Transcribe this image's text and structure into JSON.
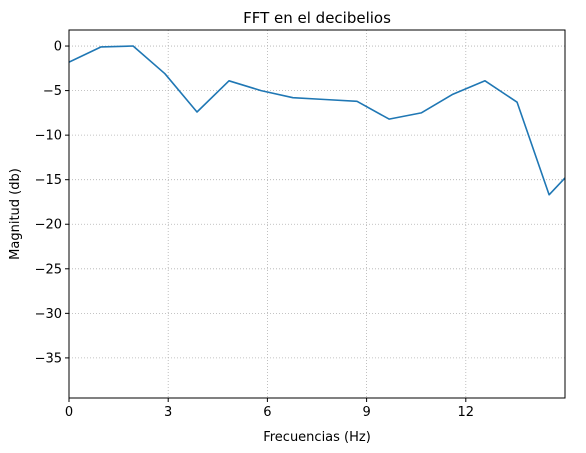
{
  "chart_data": {
    "type": "line",
    "title": "FFT en el decibelios",
    "xlabel": "Frecuencias (Hz)",
    "ylabel": "Magnitud (db)",
    "xlim": [
      0,
      15
    ],
    "ylim": [
      -39.5,
      1.8
    ],
    "xticks": [
      0,
      3,
      6,
      9,
      12
    ],
    "xtick_labels": [
      "0",
      "3",
      "6",
      "9",
      "12"
    ],
    "yticks": [
      0,
      -5,
      -10,
      -15,
      -20,
      -25,
      -30,
      -35
    ],
    "ytick_labels": [
      "0",
      "−5",
      "−10",
      "−15",
      "−20",
      "−25",
      "−30",
      "−35"
    ],
    "grid": true,
    "series": [
      {
        "color": "#1f77b4",
        "x": [
          0,
          0.97,
          1.94,
          2.9,
          3.87,
          4.84,
          5.81,
          6.77,
          7.74,
          8.71,
          9.68,
          10.65,
          11.61,
          12.58,
          13.55,
          14.52,
          15.0
        ],
        "y": [
          -1.8,
          -0.1,
          0.0,
          -3.1,
          -7.4,
          -3.9,
          -5.0,
          -5.8,
          -6.0,
          -6.2,
          -8.2,
          -7.5,
          -5.4,
          -3.9,
          -6.3,
          -16.7,
          -14.8
        ]
      }
    ]
  }
}
